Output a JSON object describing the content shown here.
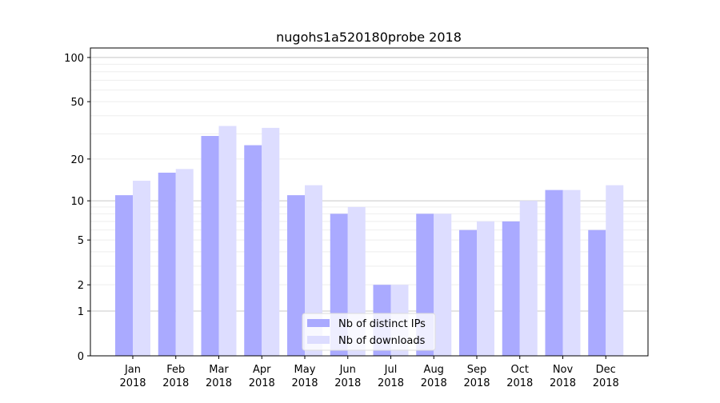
{
  "chart_data": {
    "type": "bar",
    "title": "nugohs1a520180probe 2018",
    "xlabel": "",
    "ylabel": "",
    "yscale": "symlog (log10(v+1))",
    "ylim": [
      0,
      116
    ],
    "yticks": [
      0,
      1,
      2,
      5,
      10,
      20,
      50,
      100
    ],
    "categories": [
      "Jan\n2018",
      "Feb\n2018",
      "Mar\n2018",
      "Apr\n2018",
      "May\n2018",
      "Jun\n2018",
      "Jul\n2018",
      "Aug\n2018",
      "Sep\n2018",
      "Oct\n2018",
      "Nov\n2018",
      "Dec\n2018"
    ],
    "series": [
      {
        "name": "Nb of distinct IPs",
        "color": "#aaaaff",
        "values": [
          11,
          16,
          29,
          25,
          11,
          8,
          2,
          8,
          6,
          7,
          12,
          6
        ]
      },
      {
        "name": "Nb of downloads",
        "color": "#ddddff",
        "values": [
          14,
          17,
          34,
          33,
          13,
          9,
          2,
          8,
          7,
          10,
          12,
          13
        ]
      }
    ],
    "legend": "bottom-center",
    "grid": true
  }
}
